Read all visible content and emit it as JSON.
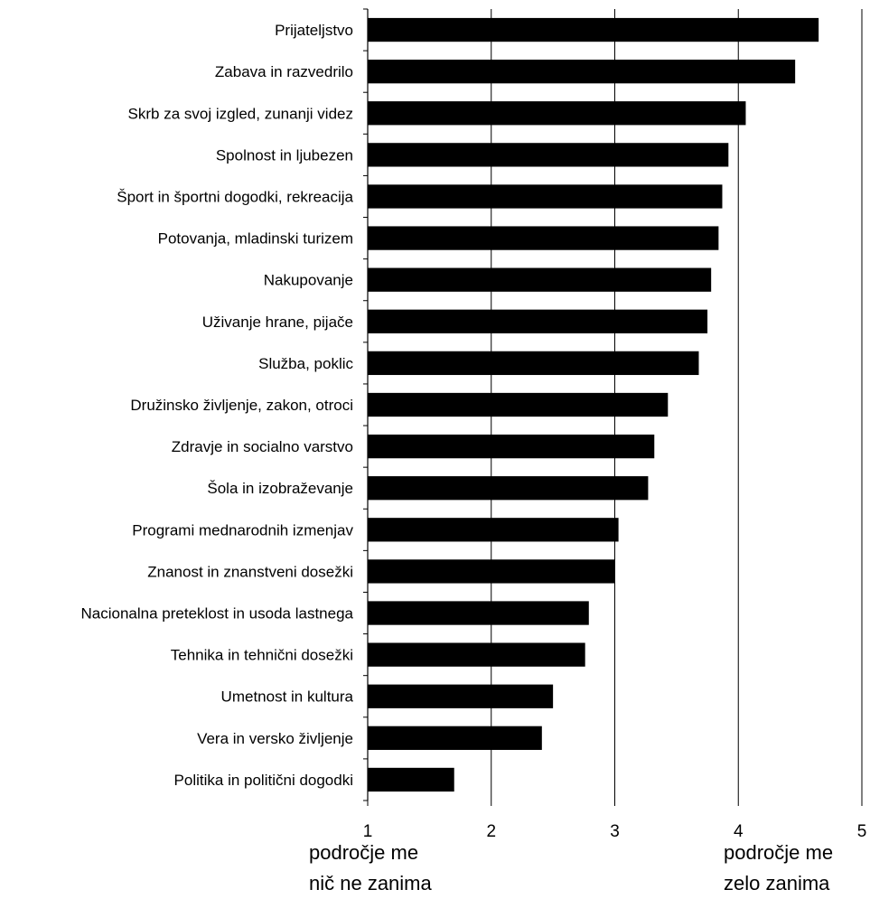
{
  "colors": {
    "bar": "#000000",
    "grid": "#000000",
    "background": "#ffffff"
  },
  "chart_data": {
    "type": "bar",
    "orientation": "horizontal",
    "grid": true,
    "xlim": [
      1,
      5
    ],
    "xticks": [
      "1",
      "2",
      "3",
      "4",
      "5"
    ],
    "categories": [
      "Prijateljstvo",
      "Zabava in razvedrilo",
      "Skrb za svoj izgled, zunanji videz",
      "Spolnost in ljubezen",
      "Šport in športni dogodki, rekreacija",
      "Potovanja, mladinski turizem",
      "Nakupovanje",
      "Uživanje hrane, pijače",
      "Služba, poklic",
      "Družinsko življenje, zakon, otroci",
      "Zdravje in socialno varstvo",
      "Šola in izobraževanje",
      "Programi mednarodnih izmenjav",
      "Znanost in znanstveni dosežki",
      "Nacionalna preteklost in usoda lastnega",
      "Tehnika in tehnični dosežki",
      "Umetnost in kultura",
      "Vera in versko življenje",
      "Politika in politični dogodki"
    ],
    "values": [
      4.65,
      4.46,
      4.06,
      3.92,
      3.87,
      3.84,
      3.78,
      3.75,
      3.68,
      3.43,
      3.32,
      3.27,
      3.03,
      3.0,
      2.79,
      2.76,
      2.5,
      2.41,
      1.7
    ],
    "scale_labels": {
      "left": [
        "področje me",
        "nič ne zanima"
      ],
      "right": [
        "področje me",
        "zelo zanima"
      ]
    }
  }
}
